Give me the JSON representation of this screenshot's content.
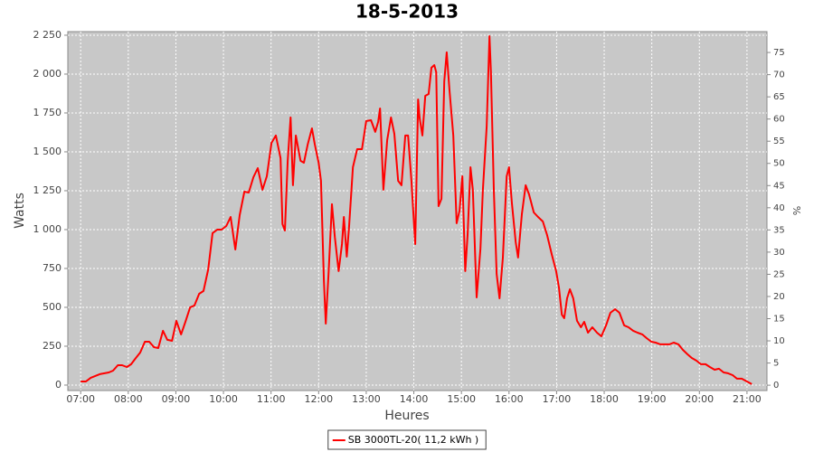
{
  "chart_data": {
    "type": "line",
    "title": "18-5-2013",
    "x_label": "Heures",
    "y_label": "Watts",
    "y2_label": "%",
    "x": [
      7.0,
      7.11,
      7.21,
      7.4,
      7.59,
      7.68,
      7.78,
      7.87,
      7.97,
      8.06,
      8.16,
      8.25,
      8.35,
      8.44,
      8.54,
      8.63,
      8.73,
      8.82,
      8.92,
      9.01,
      9.11,
      9.2,
      9.3,
      9.39,
      9.49,
      9.58,
      9.68,
      9.77,
      9.87,
      9.96,
      10.06,
      10.15,
      10.25,
      10.34,
      10.44,
      10.53,
      10.63,
      10.72,
      10.82,
      10.91,
      11.01,
      11.1,
      11.2,
      11.24,
      11.29,
      11.35,
      11.41,
      11.46,
      11.52,
      11.62,
      11.69,
      11.77,
      11.86,
      11.92,
      12.0,
      12.05,
      12.11,
      12.15,
      12.21,
      12.28,
      12.34,
      12.42,
      12.49,
      12.53,
      12.59,
      12.64,
      12.72,
      12.81,
      12.91,
      13.0,
      13.1,
      13.19,
      13.25,
      13.29,
      13.36,
      13.44,
      13.52,
      13.59,
      13.67,
      13.74,
      13.82,
      13.88,
      13.95,
      14.03,
      14.09,
      14.12,
      14.18,
      14.24,
      14.31,
      14.37,
      14.43,
      14.47,
      14.52,
      14.58,
      14.64,
      14.69,
      14.75,
      14.83,
      14.9,
      14.96,
      15.02,
      15.08,
      15.13,
      15.19,
      15.24,
      15.32,
      15.4,
      15.45,
      15.53,
      15.59,
      15.62,
      15.68,
      15.74,
      15.8,
      15.87,
      15.95,
      16.0,
      16.06,
      16.14,
      16.19,
      16.27,
      16.35,
      16.42,
      16.52,
      16.61,
      16.71,
      16.8,
      16.9,
      16.99,
      17.05,
      17.11,
      17.16,
      17.22,
      17.28,
      17.35,
      17.43,
      17.51,
      17.58,
      17.66,
      17.75,
      17.85,
      17.94,
      18.04,
      18.13,
      18.23,
      18.32,
      18.42,
      18.51,
      18.61,
      18.7,
      18.8,
      18.89,
      18.99,
      19.08,
      19.18,
      19.37,
      19.46,
      19.56,
      19.65,
      19.75,
      19.84,
      19.94,
      20.03,
      20.13,
      20.22,
      20.32,
      20.41,
      20.51,
      20.6,
      20.7,
      20.79,
      20.89,
      21.0,
      21.1
    ],
    "series": [
      {
        "name": "SB 3000TL-20( 11,2 kWh )",
        "color": "#ff0000",
        "values": [
          23,
          23,
          47,
          70,
          81,
          93,
          128,
          128,
          116,
          134,
          174,
          209,
          279,
          279,
          244,
          238,
          349,
          291,
          285,
          413,
          326,
          407,
          500,
          512,
          587,
          605,
          744,
          977,
          1000,
          1000,
          1023,
          1081,
          872,
          1093,
          1244,
          1238,
          1337,
          1395,
          1256,
          1343,
          1558,
          1605,
          1459,
          1035,
          994,
          1442,
          1721,
          1285,
          1605,
          1442,
          1430,
          1547,
          1651,
          1547,
          1430,
          1314,
          674,
          395,
          733,
          1163,
          953,
          733,
          907,
          1081,
          826,
          1023,
          1401,
          1517,
          1517,
          1698,
          1703,
          1628,
          1692,
          1779,
          1256,
          1576,
          1721,
          1616,
          1314,
          1285,
          1605,
          1605,
          1314,
          907,
          1837,
          1721,
          1605,
          1860,
          1872,
          2041,
          2058,
          2012,
          1151,
          1198,
          1953,
          2140,
          1895,
          1605,
          1041,
          1122,
          1343,
          733,
          965,
          1401,
          1256,
          564,
          878,
          1256,
          1663,
          2244,
          2012,
          1256,
          715,
          558,
          820,
          1343,
          1401,
          1169,
          919,
          820,
          1099,
          1285,
          1227,
          1110,
          1081,
          1052,
          965,
          837,
          733,
          628,
          453,
          430,
          558,
          616,
          558,
          413,
          372,
          407,
          337,
          372,
          337,
          314,
          384,
          465,
          488,
          465,
          384,
          372,
          349,
          337,
          326,
          302,
          279,
          273,
          262,
          262,
          273,
          262,
          227,
          198,
          174,
          157,
          134,
          134,
          116,
          99,
          105,
          81,
          76,
          64,
          41,
          41,
          23,
          6
        ]
      }
    ],
    "xlim": [
      6.73,
      21.42
    ],
    "xticks": [
      {
        "value": 7,
        "label": "07:00"
      },
      {
        "value": 8,
        "label": "08:00"
      },
      {
        "value": 9,
        "label": "09:00"
      },
      {
        "value": 10,
        "label": "10:00"
      },
      {
        "value": 11,
        "label": "11:00"
      },
      {
        "value": 12,
        "label": "12:00"
      },
      {
        "value": 13,
        "label": "13:00"
      },
      {
        "value": 14,
        "label": "14:00"
      },
      {
        "value": 15,
        "label": "15:00"
      },
      {
        "value": 16,
        "label": "16:00"
      },
      {
        "value": 17,
        "label": "17:00"
      },
      {
        "value": 18,
        "label": "18:00"
      },
      {
        "value": 19,
        "label": "19:00"
      },
      {
        "value": 20,
        "label": "20:00"
      },
      {
        "value": 21,
        "label": "21:00"
      }
    ],
    "ylim": [
      -35,
      2273
    ],
    "yticks": [
      0,
      250,
      500,
      750,
      {
        "value": 1000,
        "label": "1 000"
      },
      {
        "value": 1250,
        "label": "1 250"
      },
      {
        "value": 1500,
        "label": "1 500"
      },
      {
        "value": 1750,
        "label": "1 750"
      },
      {
        "value": 2000,
        "label": "2 000"
      },
      {
        "value": 2250,
        "label": "2 250"
      }
    ],
    "y2lim": [
      -1.2,
      79.7
    ],
    "y2ticks": [
      0,
      5,
      10,
      15,
      20,
      25,
      30,
      35,
      40,
      45,
      50,
      55,
      60,
      65,
      70,
      75
    ],
    "grid": true,
    "legend": "bottom"
  }
}
